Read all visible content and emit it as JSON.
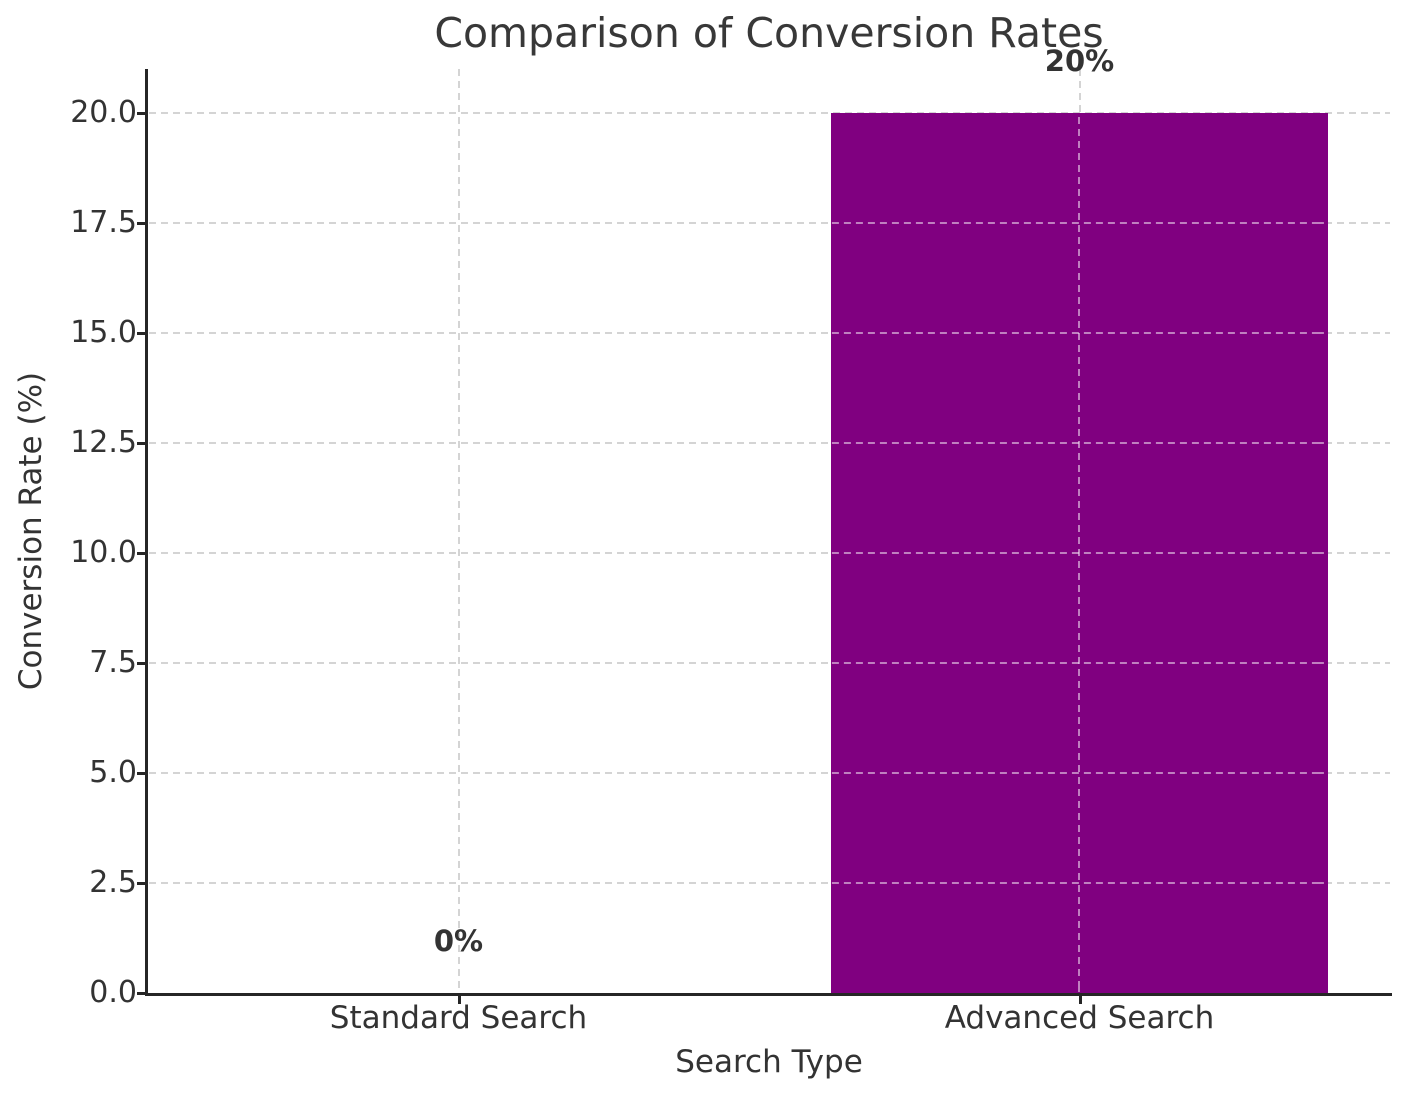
{
  "chart_data": {
    "type": "bar",
    "title": "Comparison of Conversion Rates",
    "xlabel": "Search Type",
    "ylabel": "Conversion Rate (%)",
    "categories": [
      "Standard Search",
      "Advanced Search"
    ],
    "values": [
      0,
      20
    ],
    "value_labels": [
      "0%",
      "20%"
    ],
    "series": [
      {
        "name": "Conversion Rate",
        "values": [
          0,
          20
        ]
      }
    ],
    "yticks": [
      {
        "v": 0,
        "label": "0.0"
      },
      {
        "v": 2.5,
        "label": "2.5"
      },
      {
        "v": 5,
        "label": "5.0"
      },
      {
        "v": 7.5,
        "label": "7.5"
      },
      {
        "v": 10,
        "label": "10.0"
      },
      {
        "v": 12.5,
        "label": "12.5"
      },
      {
        "v": 15,
        "label": "15.0"
      },
      {
        "v": 17.5,
        "label": "17.5"
      },
      {
        "v": 20,
        "label": "20.0"
      }
    ],
    "ylim": [
      0,
      21
    ],
    "bar_width_fraction": 0.8,
    "grid": "dashed-both-axes",
    "legend": "none",
    "colors": {
      "bar": "#800080",
      "grid": "#d4d4d4",
      "grid_over_bar": "rgba(255,255,255,0.5)",
      "axis": "#262626",
      "text": "#333333"
    }
  }
}
